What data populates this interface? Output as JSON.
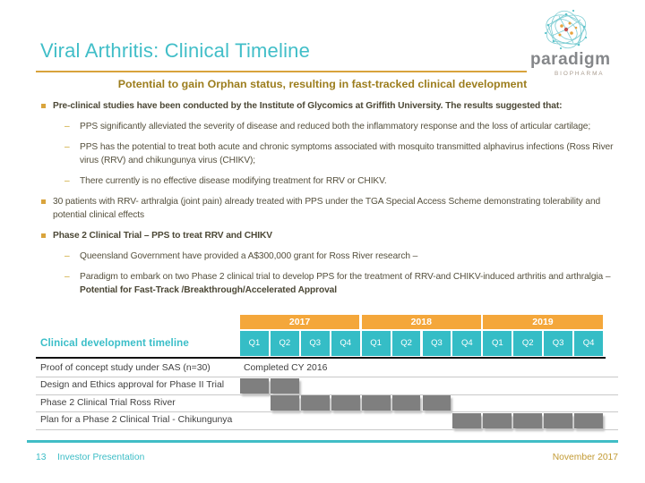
{
  "header": {
    "title": "Viral Arthritis: Clinical Timeline",
    "subtitle": "Potential to gain Orphan status, resulting in fast-tracked clinical development",
    "logo_text": "paradigm",
    "logo_subtext": "BIOPHARMA"
  },
  "bullets": [
    {
      "level": 1,
      "bold": true,
      "text": "Pre-clinical studies have been conducted by the Institute of Glycomics at Griffith University. The results suggested that:"
    },
    {
      "level": 2,
      "bold": false,
      "text": "PPS significantly alleviated the severity of disease and reduced both the inflammatory response and the loss of articular cartilage;"
    },
    {
      "level": 2,
      "bold": false,
      "text": "PPS has the potential to treat both acute and chronic symptoms associated with mosquito transmitted alphavirus infections (Ross River virus (RRV) and chikungunya virus (CHIKV);"
    },
    {
      "level": 2,
      "bold": false,
      "text": "There currently is no effective disease modifying treatment for RRV or CHIKV."
    },
    {
      "level": 1,
      "bold": false,
      "text": "30 patients with RRV- arthralgia (joint pain) already treated with PPS under the TGA Special Access Scheme demonstrating tolerability and potential clinical effects"
    },
    {
      "level": 1,
      "bold": true,
      "text": "Phase 2 Clinical Trial – PPS to treat RRV and CHIKV"
    },
    {
      "level": 2,
      "bold": false,
      "text": "Queensland Government have provided a A$300,000 grant for Ross River research –"
    },
    {
      "level": 2,
      "bold": false,
      "text": "Paradigm  to embark on two Phase 2 clinical trial to develop PPS for the treatment of RRV-and CHIKV-induced arthritis and arthralgia – ",
      "bold_suffix": "Potential for Fast-Track /Breakthrough/Accelerated Approval"
    }
  ],
  "chart_data": {
    "type": "gantt",
    "title": "Clinical development timeline",
    "years": [
      "2017",
      "2018",
      "2019"
    ],
    "quarters_per_year": [
      "Q1",
      "Q2",
      "Q3",
      "Q4"
    ],
    "columns": [
      "2017-Q1",
      "2017-Q2",
      "2017-Q3",
      "2017-Q4",
      "2018-Q1",
      "2018-Q2",
      "2018-Q3",
      "2018-Q4",
      "2019-Q1",
      "2019-Q2",
      "2019-Q3",
      "2019-Q4"
    ],
    "rows": [
      {
        "label": "Proof of concept study under SAS (n=30)",
        "note": "Completed CY 2016",
        "bar": null
      },
      {
        "label": "Design and Ethics approval for Phase II Trial",
        "note": "",
        "bar": {
          "from": "2017-Q1",
          "to": "2017-Q2"
        }
      },
      {
        "label": "Phase 2 Clinical Trial Ross River",
        "note": "",
        "bar": {
          "from": "2017-Q2",
          "to": "2018-Q3"
        }
      },
      {
        "label": "Plan for a Phase 2 Clinical Trial - Chikungunya",
        "note": "",
        "bar": {
          "from": "2018-Q4",
          "to": "2019-Q4"
        }
      }
    ],
    "legend_position": "none",
    "grid": false
  },
  "timeline_label": "Clinical development timeline",
  "footer": {
    "page": "13",
    "label": "Investor Presentation",
    "date": "November 2017"
  },
  "colors": {
    "teal": "#3cbec8",
    "orange": "#f4a73b",
    "gold_rule": "#d8a33b",
    "bar_gray": "#7f7f7f",
    "body_text": "#55503d",
    "subtitle_gold": "#9c7d1d"
  }
}
